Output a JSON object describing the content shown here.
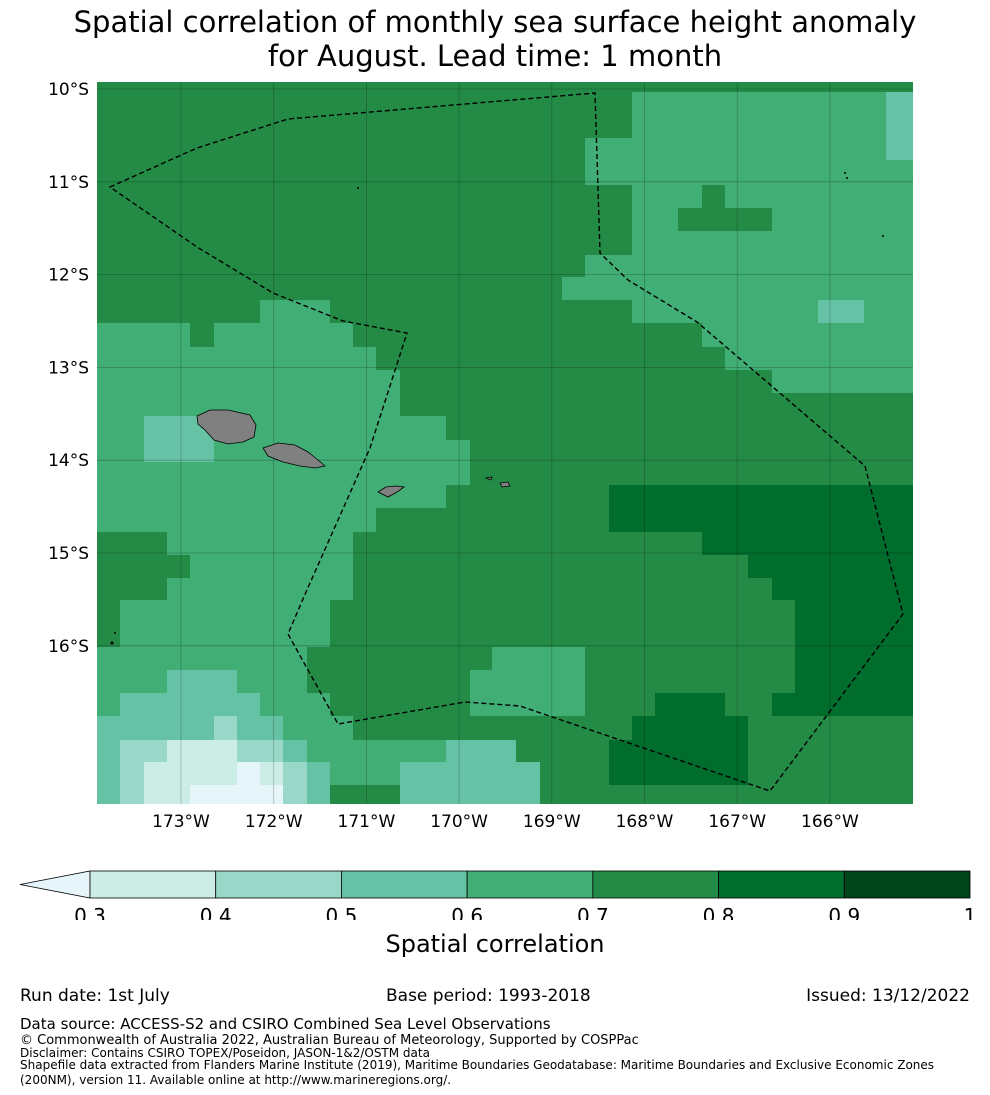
{
  "title": {
    "line1": "Spatial correlation of monthly sea surface height anomaly",
    "line2": "for August. Lead time: 1 month"
  },
  "map": {
    "lat_labels": [
      "10°S",
      "11°S",
      "12°S",
      "13°S",
      "14°S",
      "15°S",
      "16°S"
    ],
    "lon_labels": [
      "173°W",
      "172°W",
      "171°W",
      "170°W",
      "169°W",
      "168°W",
      "167°W",
      "166°W"
    ],
    "extent": {
      "lon_min": -174.0,
      "lon_max": -165.2,
      "lat_min": -17.7,
      "lat_max": -9.9
    },
    "gridlines": true,
    "land_color": "#808080",
    "eez_line_style": "dashed black"
  },
  "colorbar": {
    "ticks": [
      "0.3",
      "0.4",
      "0.5",
      "0.6",
      "0.7",
      "0.8",
      "0.9",
      "1"
    ],
    "colors": [
      "#e5f5f9",
      "#ccece6",
      "#99d8c9",
      "#66c2a4",
      "#41ae76",
      "#238b45",
      "#006d2c",
      "#00441b"
    ],
    "extend": "min",
    "label": "Spatial correlation"
  },
  "footer": {
    "run_date": "Run date: 1st July",
    "base_period": "Base period: 1993-2018",
    "issued": "Issued: 13/12/2022",
    "data_source": "Data source: ACCESS-S2 and CSIRO Combined Sea Level Observations",
    "copyright": "© Commonwealth of Australia 2022, Australian Bureau of Meteorology, Supported by COSPPac",
    "disclaimer": "Disclaimer: Contains CSIRO TOPEX/Poseidon, JASON-1&2/OSTM data",
    "shapefile_1": "Shapefile data extracted from Flanders Marine Institute (2019), Maritime Boundaries Geodatabase: Maritime Boundaries and Exclusive Economic Zones",
    "shapefile_2": "(200NM), version 11. Available online at http://www.marineregions.org/."
  }
}
